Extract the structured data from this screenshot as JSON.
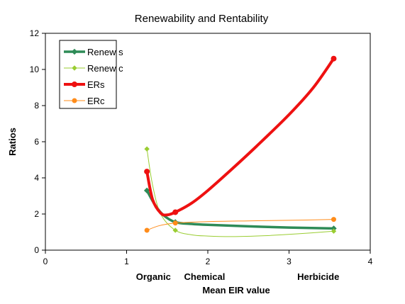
{
  "chart_data": {
    "type": "line",
    "title": "Renewability and Rentability",
    "xlabel": "Mean EIR value",
    "ylabel": "Ratios",
    "xlim": [
      0,
      4
    ],
    "ylim": [
      0,
      12
    ],
    "x_ticks": [
      "0",
      "1",
      "2",
      "3",
      "4"
    ],
    "y_ticks": [
      "0",
      "2",
      "4",
      "6",
      "8",
      "10",
      "12"
    ],
    "grid": false,
    "legend_position": "top-left",
    "annotations": [
      {
        "text": "Organic",
        "x": 1.33
      },
      {
        "text": "Chemical",
        "x": 1.96
      },
      {
        "text": "Herbicide",
        "x": 3.36
      }
    ],
    "series": [
      {
        "name": "Renew s",
        "color": "#2e8b57",
        "line_width": 3.5,
        "marker": "diamond",
        "x": [
          1.25,
          1.6,
          3.55
        ],
        "y": [
          3.3,
          1.55,
          1.2
        ],
        "curve": [
          [
            1.25,
            3.3
          ],
          [
            1.35,
            2.5
          ],
          [
            1.45,
            1.95
          ],
          [
            1.6,
            1.55
          ],
          [
            1.8,
            1.45
          ],
          [
            2.0,
            1.4
          ],
          [
            2.5,
            1.32
          ],
          [
            3.0,
            1.25
          ],
          [
            3.55,
            1.2
          ]
        ]
      },
      {
        "name": "Renew c",
        "color": "#9acd32",
        "line_width": 1,
        "marker": "diamond",
        "x": [
          1.25,
          1.6,
          3.55
        ],
        "y": [
          5.6,
          1.1,
          1.05
        ],
        "curve": [
          [
            1.25,
            5.6
          ],
          [
            1.32,
            3.6
          ],
          [
            1.42,
            2.0
          ],
          [
            1.6,
            1.1
          ],
          [
            1.8,
            0.85
          ],
          [
            2.0,
            0.78
          ],
          [
            2.3,
            0.75
          ],
          [
            2.7,
            0.8
          ],
          [
            3.1,
            0.9
          ],
          [
            3.55,
            1.05
          ]
        ]
      },
      {
        "name": "ERs",
        "color": "#ee1111",
        "line_width": 4,
        "marker": "circle",
        "x": [
          1.25,
          1.6,
          3.55
        ],
        "y": [
          4.35,
          2.1,
          10.6
        ],
        "curve": [
          [
            1.25,
            4.35
          ],
          [
            1.32,
            2.8
          ],
          [
            1.42,
            2.05
          ],
          [
            1.5,
            1.95
          ],
          [
            1.6,
            2.1
          ],
          [
            1.8,
            2.6
          ],
          [
            2.0,
            3.3
          ],
          [
            2.3,
            4.5
          ],
          [
            2.6,
            5.75
          ],
          [
            3.0,
            7.5
          ],
          [
            3.3,
            9.0
          ],
          [
            3.55,
            10.6
          ]
        ]
      },
      {
        "name": "ERc",
        "color": "#ff8c1a",
        "line_width": 1,
        "marker": "circle",
        "x": [
          1.25,
          1.6,
          3.55
        ],
        "y": [
          1.1,
          1.5,
          1.7
        ],
        "curve": [
          [
            1.25,
            1.1
          ],
          [
            1.4,
            1.35
          ],
          [
            1.6,
            1.5
          ],
          [
            2.0,
            1.58
          ],
          [
            2.5,
            1.62
          ],
          [
            3.0,
            1.65
          ],
          [
            3.55,
            1.7
          ]
        ]
      }
    ]
  }
}
